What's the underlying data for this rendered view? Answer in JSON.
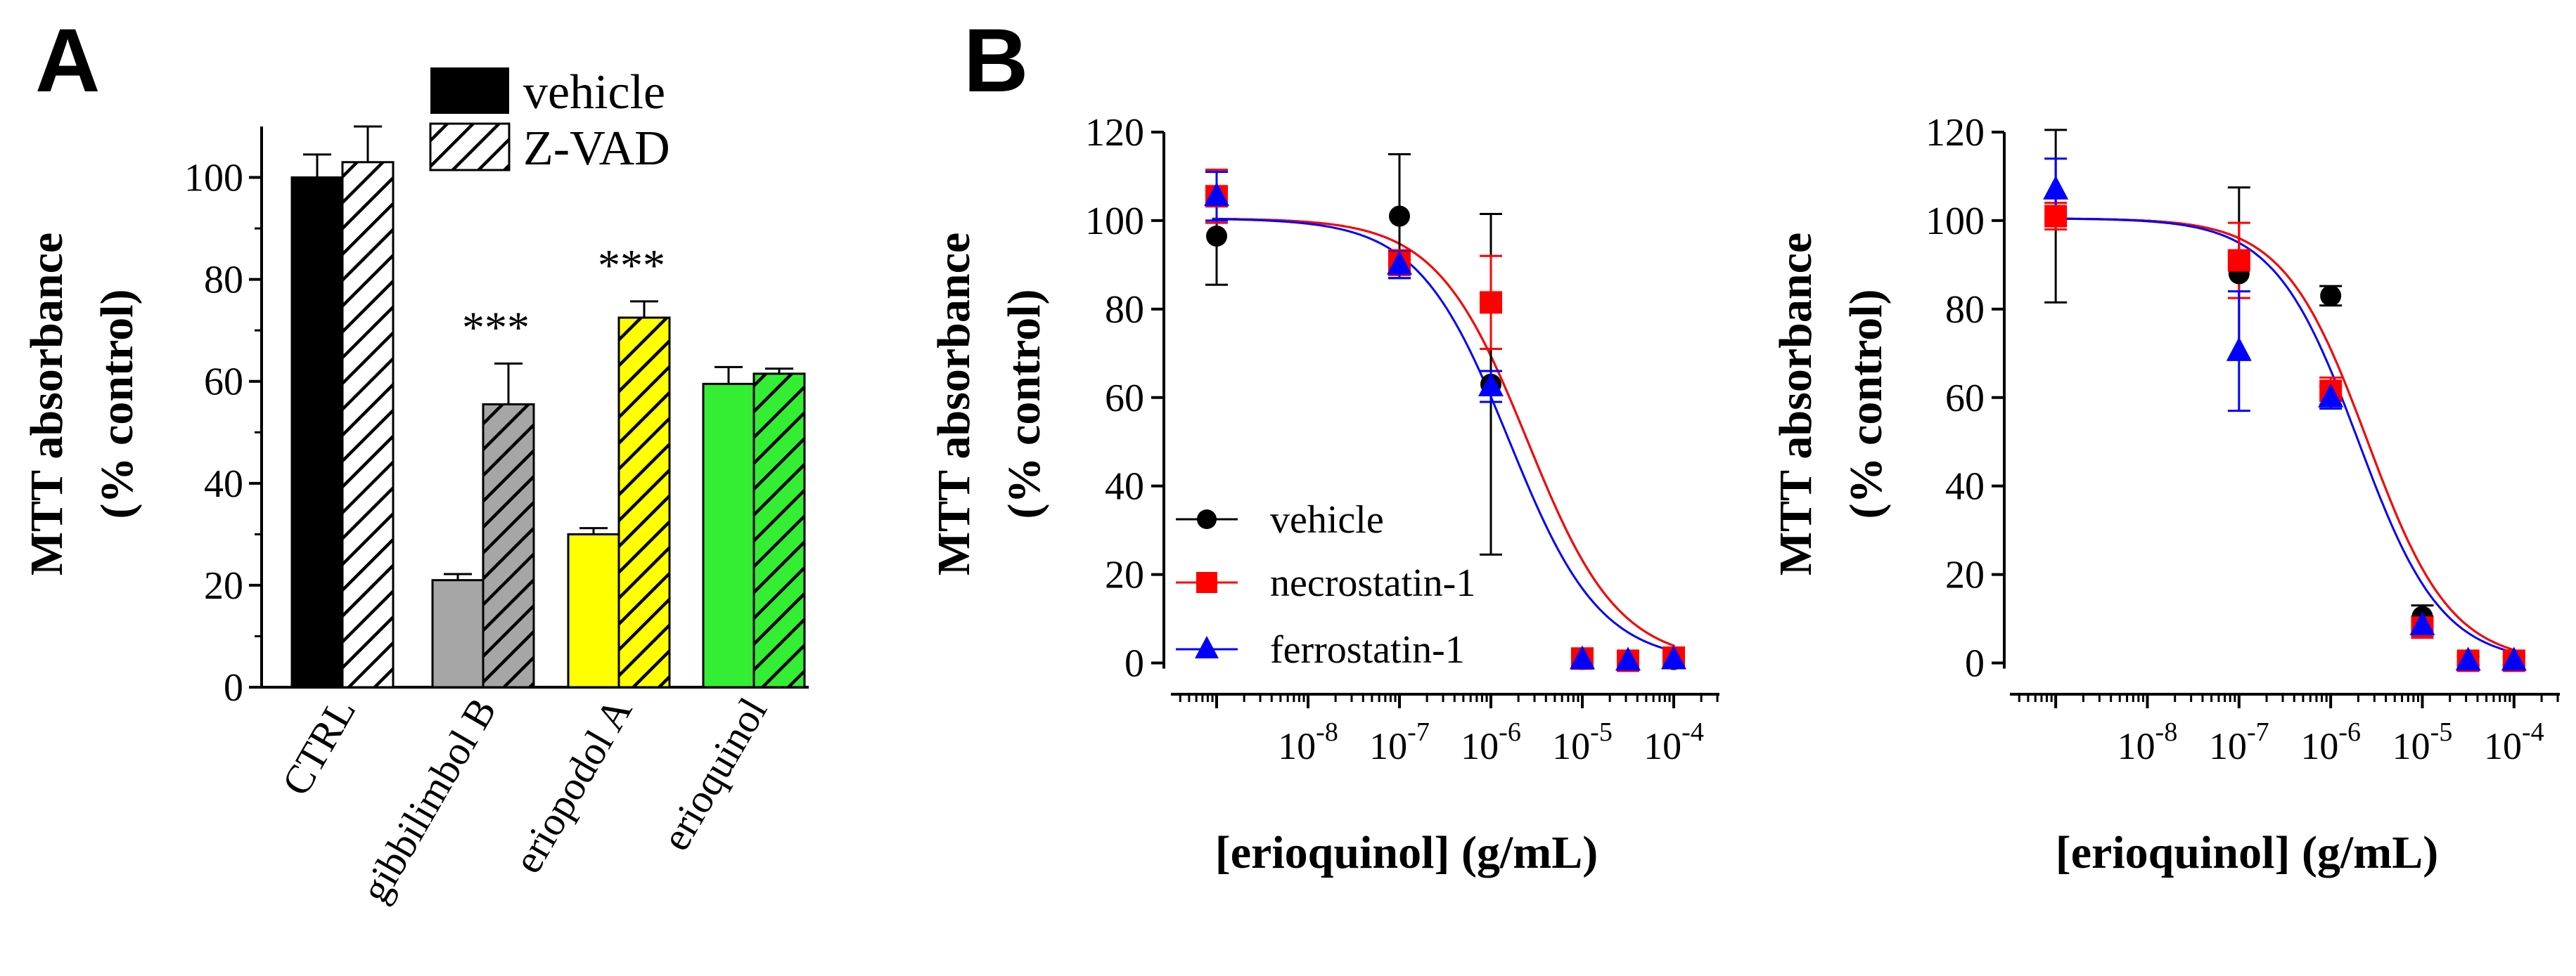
{
  "panels": {
    "a_letter": "A",
    "b_letter": "B"
  },
  "chart_data": [
    {
      "type": "bar",
      "title": "",
      "xlabel": "",
      "ylabel_line1": "MTT absorbance",
      "ylabel_line2": "(% control)",
      "ylim": [
        0,
        110
      ],
      "yticks": [
        0,
        20,
        40,
        60,
        80,
        100
      ],
      "ytick_labels": [
        "0",
        "20",
        "40",
        "60",
        "80",
        "100"
      ],
      "categories": [
        "CTRL",
        "gibbilimbol B",
        "eriopodol A",
        "erioquinol"
      ],
      "category_colors": [
        "#000000",
        "#a6a6a6",
        "#ffff00",
        "#33ee33"
      ],
      "series": [
        {
          "name": "vehicle",
          "pattern": "solid",
          "values": [
            100,
            21,
            30,
            59.5
          ],
          "errors": [
            4.5,
            1.2,
            1.2,
            3.3
          ]
        },
        {
          "name": "Z-VAD",
          "pattern": "hatched",
          "values": [
            103,
            55.5,
            72.5,
            61.5
          ],
          "errors": [
            7,
            8,
            3.2,
            1
          ]
        }
      ],
      "annotations": [
        {
          "category": "gibbilimbol B",
          "text": "***"
        },
        {
          "category": "eriopodol A",
          "text": "***"
        }
      ]
    },
    {
      "type": "scatter",
      "title": "",
      "xlabel": "[erioquinol] (g/mL)",
      "ylabel_line1": "MTT absorbance",
      "ylabel_line2": "(% control)",
      "xscale": "log",
      "xlim_log10": [
        -9.5,
        -3.5
      ],
      "ylim": [
        -5,
        120
      ],
      "yticks": [
        0,
        20,
        40,
        60,
        80,
        100,
        120
      ],
      "ytick_labels": [
        "0",
        "20",
        "40",
        "60",
        "80",
        "100",
        "120"
      ],
      "xtick_exponents": [
        "-8",
        "-7",
        "-6",
        "-5",
        "-4"
      ],
      "xtick_base": "10",
      "legend_position": "bottom-left",
      "series": [
        {
          "name": "vehicle",
          "color": "#000000",
          "marker": "circle",
          "x_log10": [
            -9,
            -7,
            -6,
            -5,
            -4.5,
            -4
          ],
          "y": [
            96.5,
            101,
            63,
            0.8,
            0.5,
            0.8
          ],
          "errors": [
            11,
            14,
            38.5,
            1.5,
            1,
            1.5
          ],
          "fit": {
            "top": 100.5,
            "bottom": 0,
            "log_ec50": -5.6,
            "hill": 0.87
          }
        },
        {
          "name": "necrostatin-1",
          "color": "#ff0000",
          "marker": "square",
          "x_log10": [
            -9,
            -7,
            -6,
            -5,
            -4.5,
            -4
          ],
          "y": [
            105.5,
            90.5,
            81.5,
            1,
            0.5,
            1.2
          ],
          "errors": [
            6,
            2.8,
            10.5,
            1.5,
            1,
            1.5
          ],
          "fit": {
            "top": 100.5,
            "bottom": 0,
            "log_ec50": -5.6,
            "hill": 0.87
          }
        },
        {
          "name": "ferrostatin-1",
          "color": "#0000ff",
          "marker": "triangle",
          "x_log10": [
            -9,
            -7,
            -6,
            -5,
            -4.5,
            -4
          ],
          "y": [
            105.5,
            90,
            62.5,
            0.8,
            0.5,
            0.8
          ],
          "errors": [
            5.5,
            3,
            3.5,
            1.5,
            1,
            1.5
          ],
          "fit": {
            "top": 100.5,
            "bottom": 0,
            "log_ec50": -5.8,
            "hill": 0.87
          }
        }
      ]
    },
    {
      "type": "scatter",
      "title": "",
      "xlabel": "[erioquinol] (g/mL)",
      "ylabel_line1": "MTT absorbance",
      "ylabel_line2": "(% control)",
      "xscale": "log",
      "xlim_log10": [
        -9.5,
        -3.5
      ],
      "ylim": [
        -5,
        120
      ],
      "yticks": [
        0,
        20,
        40,
        60,
        80,
        100,
        120
      ],
      "ytick_labels": [
        "0",
        "20",
        "40",
        "60",
        "80",
        "100",
        "120"
      ],
      "xtick_exponents": [
        "-8",
        "-7",
        "-6",
        "-5",
        "-4"
      ],
      "xtick_base": "10",
      "series": [
        {
          "name": "vehicle",
          "color": "#000000",
          "marker": "circle",
          "x_log10": [
            -9,
            -7,
            -6,
            -5,
            -4.5,
            -4
          ],
          "y": [
            101,
            88,
            83,
            10.5,
            0.5,
            0.5
          ],
          "errors": [
            19.5,
            19.5,
            2.2,
            2.5,
            1,
            1
          ],
          "fit": {
            "top": 100.5,
            "bottom": 0,
            "log_ec50": -5.6,
            "hill": 0.95
          }
        },
        {
          "name": "necrostatin-1",
          "color": "#ff0000",
          "marker": "square",
          "x_log10": [
            -9,
            -7,
            -6,
            -5,
            -4.5,
            -4
          ],
          "y": [
            101,
            91,
            61.5,
            8,
            0.5,
            0.5
          ],
          "errors": [
            3,
            8.5,
            3,
            2,
            1,
            1
          ],
          "fit": {
            "top": 100.5,
            "bottom": 0,
            "log_ec50": -5.6,
            "hill": 0.95
          }
        },
        {
          "name": "ferrostatin-1",
          "color": "#0000ff",
          "marker": "triangle",
          "x_log10": [
            -9,
            -7,
            -6,
            -5,
            -4.5,
            -4
          ],
          "y": [
            107,
            70.5,
            60,
            8.5,
            0.5,
            0.5
          ],
          "errors": [
            7,
            13.5,
            2.5,
            2,
            1,
            1
          ],
          "fit": {
            "top": 100.5,
            "bottom": 0,
            "log_ec50": -5.7,
            "hill": 0.95
          }
        }
      ]
    }
  ]
}
